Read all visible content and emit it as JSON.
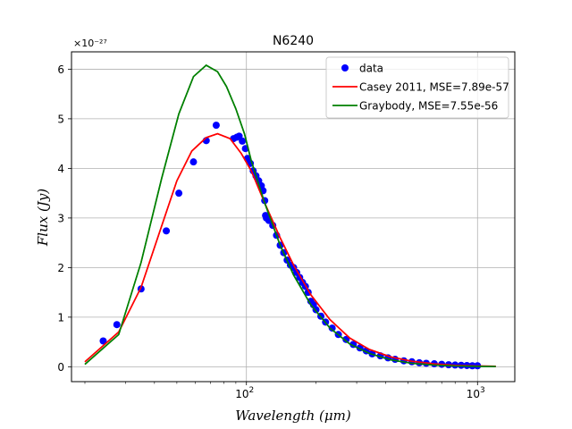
{
  "chart_data": {
    "type": "scatter",
    "title": "N6240",
    "xlabel": "Wavelength (μm)",
    "ylabel": "Flux (Jy)",
    "xscale": "log",
    "xlim": [
      17.5,
      1450
    ],
    "ylim": [
      -0.3,
      6.35
    ],
    "y_multiplier": "×10⁻²⁷",
    "grid": true,
    "legend_position": "top-right",
    "x_major_ticks": [
      {
        "value": 100,
        "base": "10",
        "exp": "2"
      },
      {
        "value": 1000,
        "base": "10",
        "exp": "3"
      }
    ],
    "y_ticks": [
      0,
      1,
      2,
      3,
      4,
      5,
      6
    ],
    "series": [
      {
        "name": "data",
        "kind": "scatter",
        "color": "#0000ff",
        "x": [
          24,
          27.5,
          35,
          45,
          51,
          59,
          67,
          74,
          88,
          91,
          93,
          96,
          99,
          101,
          104,
          107,
          110,
          113,
          116,
          118,
          120,
          121,
          122,
          125,
          130,
          135,
          140,
          145,
          150,
          155,
          160,
          165,
          170,
          175,
          180,
          185,
          190,
          195,
          200,
          210,
          220,
          235,
          250,
          270,
          290,
          310,
          330,
          350,
          380,
          410,
          440,
          480,
          520,
          560,
          600,
          650,
          700,
          750,
          800,
          850,
          900,
          950,
          1000
        ],
        "y": [
          0.52,
          0.85,
          1.57,
          2.74,
          3.5,
          4.13,
          4.56,
          4.87,
          4.6,
          4.63,
          4.65,
          4.55,
          4.4,
          4.2,
          4.1,
          3.95,
          3.85,
          3.75,
          3.65,
          3.55,
          3.35,
          3.05,
          3.0,
          2.95,
          2.85,
          2.65,
          2.45,
          2.3,
          2.15,
          2.05,
          2.0,
          1.9,
          1.8,
          1.7,
          1.62,
          1.5,
          1.32,
          1.25,
          1.15,
          1.02,
          0.9,
          0.78,
          0.65,
          0.55,
          0.45,
          0.38,
          0.32,
          0.26,
          0.22,
          0.18,
          0.15,
          0.12,
          0.1,
          0.08,
          0.07,
          0.06,
          0.05,
          0.04,
          0.035,
          0.03,
          0.025,
          0.02,
          0.02
        ]
      },
      {
        "name": "Casey 2011, MSE=7.89e-57",
        "kind": "line",
        "color": "#ff0000",
        "x": [
          20,
          28,
          35,
          42,
          50,
          58,
          67,
          75,
          85,
          95,
          105,
          120,
          140,
          160,
          190,
          230,
          280,
          340,
          420,
          520,
          650,
          800,
          1000,
          1200
        ],
        "y": [
          0.1,
          0.7,
          1.6,
          2.7,
          3.75,
          4.35,
          4.62,
          4.7,
          4.6,
          4.3,
          3.95,
          3.3,
          2.6,
          2.05,
          1.45,
          0.95,
          0.58,
          0.35,
          0.2,
          0.11,
          0.06,
          0.03,
          0.015,
          0.01
        ]
      },
      {
        "name": "Graybody, MSE=7.55e-56",
        "kind": "line",
        "color": "#008000",
        "x": [
          20,
          28,
          35,
          43,
          51,
          59,
          67,
          75,
          82,
          90,
          98,
          105,
          120,
          140,
          160,
          190,
          230,
          280,
          340,
          420,
          520,
          650,
          800,
          1000,
          1200
        ],
        "y": [
          0.05,
          0.65,
          2.1,
          3.8,
          5.1,
          5.85,
          6.08,
          5.95,
          5.65,
          5.2,
          4.7,
          4.15,
          3.3,
          2.45,
          1.85,
          1.25,
          0.78,
          0.46,
          0.27,
          0.14,
          0.07,
          0.035,
          0.018,
          0.008,
          0.004
        ]
      }
    ]
  }
}
